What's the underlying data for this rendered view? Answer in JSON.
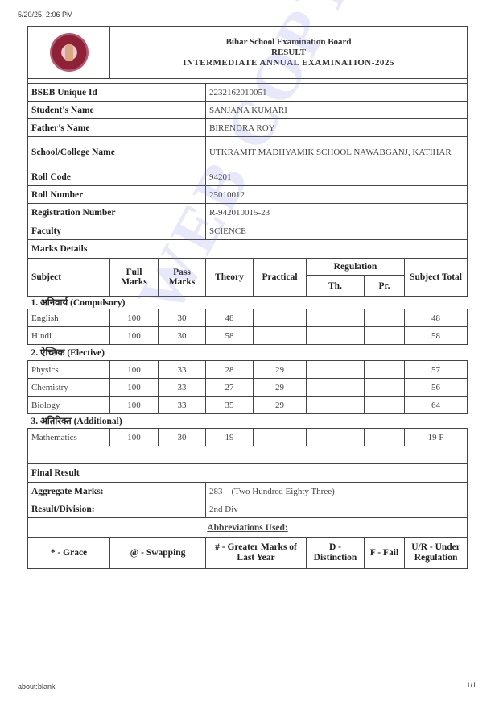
{
  "browser": {
    "timestamp": "5/20/25, 2:06 PM",
    "url": "about:blank",
    "page": "1/1"
  },
  "header": {
    "board": "Bihar School Examination Board",
    "result": "RESULT",
    "exam": "INTERMEDIATE ANNUAL EXAMINATION-2025",
    "watermark": "WEB COPY"
  },
  "student": {
    "rows": [
      {
        "label": "BSEB Unique Id",
        "value": "2232162010051"
      },
      {
        "label": "Student's Name",
        "value": "SANJANA KUMARI"
      },
      {
        "label": "Father's Name",
        "value": "BIRENDRA ROY"
      },
      {
        "label": "School/College Name",
        "value": "UTKRAMIT MADHYAMIK SCHOOL NAWABGANJ, KATIHAR"
      },
      {
        "label": "Roll Code",
        "value": "94201"
      },
      {
        "label": "Roll Number",
        "value": "25010012"
      },
      {
        "label": "Registration Number",
        "value": "R-942010015-23"
      },
      {
        "label": "Faculty",
        "value": "SCIENCE"
      }
    ]
  },
  "marks": {
    "title": "Marks Details",
    "columns": {
      "subject": "Subject",
      "full": "Full Marks",
      "pass": "Pass Marks",
      "theory": "Theory",
      "practical": "Practical",
      "regulation": "Regulation",
      "reg_th": "Th.",
      "reg_pr": "Pr.",
      "total": "Subject Total"
    },
    "sections": [
      {
        "title": "1. अनिवार्य (Compulsory)",
        "rows": [
          {
            "subject": "English",
            "full": "100",
            "pass": "30",
            "theory": "48",
            "practical": "",
            "th": "",
            "pr": "",
            "total": "48"
          },
          {
            "subject": "Hindi",
            "full": "100",
            "pass": "30",
            "theory": "58",
            "practical": "",
            "th": "",
            "pr": "",
            "total": "58"
          }
        ]
      },
      {
        "title": "2. ऐच्छिक (Elective)",
        "rows": [
          {
            "subject": "Physics",
            "full": "100",
            "pass": "33",
            "theory": "28",
            "practical": "29",
            "th": "",
            "pr": "",
            "total": "57"
          },
          {
            "subject": "Chemistry",
            "full": "100",
            "pass": "33",
            "theory": "27",
            "practical": "29",
            "th": "",
            "pr": "",
            "total": "56"
          },
          {
            "subject": "Biology",
            "full": "100",
            "pass": "33",
            "theory": "35",
            "practical": "29",
            "th": "",
            "pr": "",
            "total": "64"
          }
        ]
      },
      {
        "title": "3. अतिरिक्त (Additional)",
        "rows": [
          {
            "subject": "Mathematics",
            "full": "100",
            "pass": "30",
            "theory": "19",
            "practical": "",
            "th": "",
            "pr": "",
            "total": "19 F"
          }
        ]
      }
    ]
  },
  "final": {
    "title": "Final Result",
    "aggregate_label": "Aggregate Marks:",
    "aggregate_value": "283    (Two Hundred Eighty Three)",
    "division_label": "Result/Division:",
    "division_value": "2nd Div"
  },
  "abbreviations": {
    "title": "Abbreviations Used:",
    "items": [
      "* - Grace",
      "@ - Swapping",
      "# - Greater Marks of Last Year",
      "D - Distinction",
      "F - Fail",
      "U/R - Under Regulation"
    ]
  }
}
